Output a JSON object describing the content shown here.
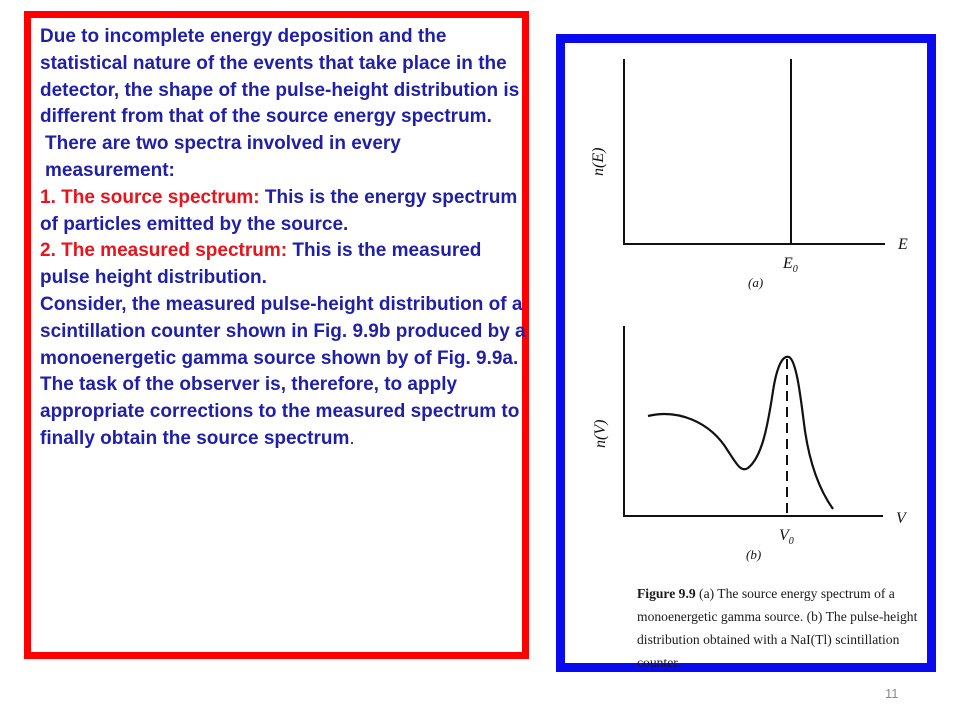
{
  "left_panel": {
    "intro": "Due to incomplete energy deposition and the statistical nature of the events that take place in the detector, the shape of the pulse-height distribution is different from that of the source energy spectrum.",
    "two_spectra": "There are two spectra  involved in every measurement:",
    "item1_label": "1. The source spectrum:",
    "item1_text": " This is the energy spectrum of particles emitted by the source.",
    "item2_label": "2. The measured spectrum:",
    "item2_text": " This is the measured pulse height distribution.",
    "consider": "Consider, the measured pulse-height distribution of a scintillation counter shown in Fig. 9.9b produced by a monoenergetic gamma source shown by of Fig. 9.9a.",
    "task": "The task of the observer is, therefore, to apply appropriate corrections to the measured spectrum to finally obtain the source spectrum",
    "task_end": "."
  },
  "figure": {
    "a": {
      "y_label": "n(E)",
      "x_label": "E",
      "tick_label": "E",
      "tick_sub": "0",
      "panel_label": "(a)"
    },
    "b": {
      "y_label": "n(V)",
      "x_label": "V",
      "tick_label": "V",
      "tick_sub": "0",
      "panel_label": "(b)"
    },
    "caption_fig": "Figure 9.9",
    "caption_text": " (a) The source energy spectrum of a monoenergetic gamma source. (b) The pulse-height distribution obtained with a NaI(Tl) scintillation counter."
  },
  "page_number": "11",
  "colors": {
    "red_frame": "#ff0000",
    "blue_frame": "#0a0af0",
    "body_text": "#1f1fa8",
    "highlight_text": "#e8141b"
  }
}
